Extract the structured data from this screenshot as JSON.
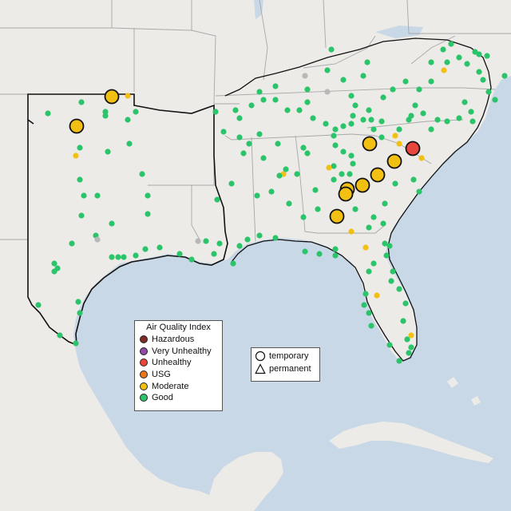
{
  "legend": {
    "title": "Air Quality Index",
    "categories": [
      {
        "label": "Hazardous",
        "color": "#7e2a26"
      },
      {
        "label": "Very Unhealthy",
        "color": "#8e4aa5"
      },
      {
        "label": "Unhealthy",
        "color": "#e8453c"
      },
      {
        "label": "USG",
        "color": "#e8761b"
      },
      {
        "label": "Moderate",
        "color": "#f2c013"
      },
      {
        "label": "Good",
        "color": "#2cc46b"
      }
    ]
  },
  "type_legend": {
    "items": [
      {
        "label": "temporary",
        "symbol": "circle-icon"
      },
      {
        "label": "permanent",
        "symbol": "triangle-icon"
      }
    ]
  },
  "colors": {
    "water": "#c9d8e6",
    "land": "#ecebe8",
    "state_border": "#9a9a9a",
    "highlight_border": "#111111",
    "no_data": "#b8b8b8"
  }
}
